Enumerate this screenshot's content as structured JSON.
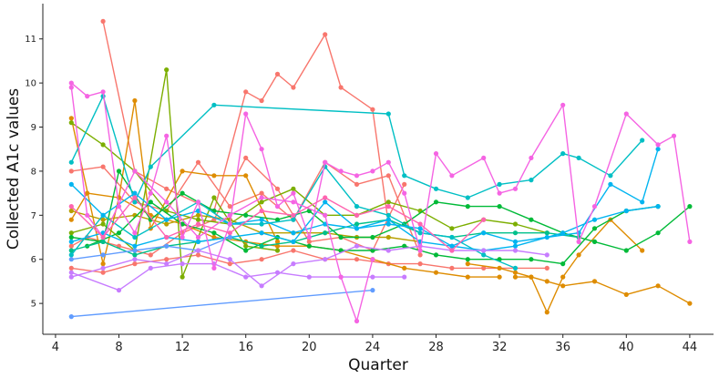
{
  "chart_data": {
    "type": "line",
    "title": "",
    "xlabel": "Quarter",
    "ylabel": "Collected A1c values",
    "xlim": [
      3.2,
      45.5
    ],
    "ylim": [
      4.3,
      11.8
    ],
    "x_ticks": [
      4,
      8,
      12,
      16,
      20,
      24,
      28,
      32,
      36,
      40,
      44
    ],
    "y_ticks": [
      5,
      6,
      7,
      8,
      9,
      10,
      11
    ],
    "grid": false,
    "legend": "none",
    "series": [
      {
        "color": "#F8766D",
        "x": [
          7,
          9,
          11,
          14,
          16,
          17,
          18,
          19,
          21,
          22,
          24,
          25
        ],
        "y": [
          11.4,
          8.0,
          7.6,
          7.1,
          9.8,
          9.6,
          10.2,
          9.9,
          11.1,
          9.9,
          9.4,
          6.8
        ]
      },
      {
        "color": "#F8766D",
        "x": [
          5,
          7,
          9,
          11,
          13,
          15,
          17,
          19,
          21,
          23,
          25,
          27
        ],
        "y": [
          8.0,
          8.1,
          7.3,
          7.1,
          8.2,
          7.2,
          7.5,
          6.9,
          8.2,
          7.7,
          7.9,
          6.1
        ]
      },
      {
        "color": "#F8766D",
        "x": [
          5,
          6,
          8,
          10,
          12,
          14,
          16,
          18,
          20,
          22,
          24,
          26
        ],
        "y": [
          6.3,
          6.5,
          6.3,
          6.1,
          6.6,
          6.9,
          8.3,
          7.6,
          6.4,
          6.5,
          6.2,
          7.7
        ]
      },
      {
        "color": "#F8766D",
        "x": [
          5,
          7,
          9,
          11,
          13,
          15,
          17,
          19,
          21,
          23,
          25,
          27,
          29,
          31,
          35
        ],
        "y": [
          5.8,
          5.7,
          5.9,
          6.0,
          6.1,
          5.9,
          6.0,
          6.2,
          6.0,
          6.0,
          5.9,
          5.9,
          5.8,
          5.8,
          5.8
        ]
      },
      {
        "color": "#DE8C00",
        "x": [
          5,
          7,
          8,
          9,
          10,
          12,
          14,
          16,
          18
        ],
        "y": [
          9.2,
          5.9,
          7.4,
          9.6,
          6.7,
          8.0,
          7.9,
          7.9,
          6.4
        ]
      },
      {
        "color": "#DE8C00",
        "x": [
          5,
          6,
          8,
          10,
          12,
          14,
          16,
          18,
          20,
          22,
          24,
          26,
          28,
          30,
          32
        ],
        "y": [
          6.9,
          7.5,
          7.4,
          7.0,
          6.8,
          6.5,
          6.4,
          6.3,
          6.3,
          6.2,
          6.0,
          5.8,
          5.7,
          5.6,
          5.6
        ]
      },
      {
        "color": "#DE8C00",
        "x": [
          33,
          34,
          35,
          36,
          38,
          40,
          42,
          44
        ],
        "y": [
          5.6,
          5.6,
          5.5,
          5.4,
          5.5,
          5.2,
          5.4,
          5.0
        ]
      },
      {
        "color": "#DE8C00",
        "x": [
          30,
          32,
          33,
          34,
          35,
          36,
          37,
          39,
          41
        ],
        "y": [
          5.9,
          5.8,
          5.7,
          5.6,
          4.8,
          5.6,
          6.1,
          6.9,
          6.2
        ]
      },
      {
        "color": "#B79F00",
        "x": [
          5,
          7,
          9,
          11,
          13,
          15,
          17,
          19,
          21,
          23,
          25,
          27
        ],
        "y": [
          7.1,
          6.9,
          7.0,
          6.8,
          7.0,
          6.9,
          6.6,
          6.6,
          6.6,
          6.5,
          6.5,
          6.4
        ]
      },
      {
        "color": "#7CAE00",
        "x": [
          5,
          7,
          9,
          11,
          13,
          15,
          17,
          19,
          21,
          23,
          25,
          27,
          29,
          31,
          33,
          35
        ],
        "y": [
          9.1,
          8.6,
          8.0,
          7.1,
          6.9,
          6.8,
          7.3,
          7.6,
          7.0,
          7.0,
          7.3,
          7.1,
          6.7,
          6.9,
          6.8,
          6.6
        ]
      },
      {
        "color": "#7CAE00",
        "x": [
          5,
          7,
          9,
          11,
          12,
          14,
          16,
          18
        ],
        "y": [
          6.6,
          6.8,
          6.2,
          10.3,
          5.6,
          7.4,
          6.3,
          6.2
        ]
      },
      {
        "color": "#00BA38",
        "x": [
          5,
          7,
          8,
          10,
          12,
          14,
          16,
          18,
          20,
          22,
          24,
          26,
          28,
          30,
          32,
          34,
          36,
          38,
          40,
          42,
          44
        ],
        "y": [
          6.5,
          6.4,
          8.0,
          6.9,
          7.5,
          7.1,
          7.0,
          6.9,
          7.1,
          6.5,
          6.5,
          6.8,
          7.3,
          7.2,
          7.2,
          6.9,
          6.6,
          6.4,
          6.2,
          6.6,
          7.2
        ]
      },
      {
        "color": "#00BA38",
        "x": [
          6,
          8,
          10,
          12,
          14,
          16,
          18,
          20,
          22,
          24,
          26,
          28,
          30,
          32,
          34,
          36,
          38,
          40,
          42
        ],
        "y": [
          6.3,
          6.6,
          7.3,
          6.8,
          6.6,
          6.2,
          6.5,
          6.3,
          6.2,
          6.2,
          6.3,
          6.1,
          6.0,
          6.0,
          6.0,
          5.9,
          6.7,
          7.1,
          7.2
        ]
      },
      {
        "color": "#00C08B",
        "x": [
          5,
          7,
          9,
          11,
          13,
          15,
          17,
          19,
          21,
          23,
          25,
          27,
          29,
          31,
          33,
          35,
          37
        ],
        "y": [
          6.2,
          6.4,
          6.1,
          6.3,
          6.4,
          6.5,
          6.3,
          6.4,
          6.6,
          6.8,
          6.9,
          6.6,
          6.5,
          6.6,
          6.6,
          6.6,
          6.5
        ]
      },
      {
        "color": "#00BFC4",
        "x": [
          5,
          7,
          9,
          10,
          14,
          25,
          26,
          28,
          30,
          32,
          34,
          36,
          37,
          39,
          41
        ],
        "y": [
          8.2,
          9.7,
          7.3,
          8.1,
          9.5,
          9.3,
          7.9,
          7.6,
          7.4,
          7.7,
          7.8,
          8.4,
          8.3,
          7.9,
          8.7
        ]
      },
      {
        "color": "#00BFC4",
        "x": [
          5,
          7,
          9,
          11,
          13,
          15,
          17,
          19,
          21,
          23,
          25,
          27,
          29,
          31,
          33
        ],
        "y": [
          6.1,
          7.0,
          6.5,
          6.9,
          7.3,
          6.8,
          6.8,
          6.9,
          8.1,
          7.2,
          7.0,
          6.6,
          6.5,
          6.1,
          5.8
        ]
      },
      {
        "color": "#00B4F0",
        "x": [
          5,
          7,
          9,
          11,
          13,
          15,
          17,
          19,
          21,
          23,
          25,
          27,
          29,
          31,
          33,
          35,
          37,
          39,
          41,
          42
        ],
        "y": [
          7.7,
          7.0,
          7.5,
          6.9,
          7.1,
          6.8,
          6.9,
          6.6,
          6.8,
          6.7,
          6.8,
          6.7,
          6.3,
          6.6,
          6.4,
          6.5,
          6.6,
          7.7,
          7.3,
          8.5
        ]
      },
      {
        "color": "#00B4F0",
        "x": [
          5,
          7,
          9,
          11,
          13,
          15,
          17,
          19,
          21,
          23,
          25,
          27,
          29,
          31,
          33,
          36,
          38,
          40,
          42
        ],
        "y": [
          6.4,
          6.6,
          6.3,
          6.5,
          6.4,
          6.5,
          6.6,
          6.4,
          7.3,
          6.7,
          6.9,
          6.4,
          6.3,
          6.2,
          6.3,
          6.6,
          6.9,
          7.1,
          7.2
        ]
      },
      {
        "color": "#619CFF",
        "x": [
          5,
          7,
          9,
          11,
          13,
          15
        ],
        "y": [
          6.0,
          6.1,
          6.2,
          6.3,
          6.2,
          6.5
        ]
      },
      {
        "color": "#619CFF",
        "x": [
          5,
          24
        ],
        "y": [
          4.7,
          5.3
        ]
      },
      {
        "color": "#C77CFF",
        "x": [
          5,
          7,
          9,
          11,
          13,
          15,
          17,
          19,
          21,
          23,
          25,
          27,
          29,
          31,
          33,
          35
        ],
        "y": [
          5.6,
          5.8,
          6.0,
          5.9,
          6.2,
          6.0,
          5.4,
          5.9,
          6.0,
          6.3,
          6.2,
          6.3,
          6.2,
          6.2,
          6.2,
          6.1
        ]
      },
      {
        "color": "#C77CFF",
        "x": [
          5,
          8,
          10,
          12,
          14,
          16,
          18,
          20,
          22,
          24,
          26
        ],
        "y": [
          5.7,
          5.3,
          5.8,
          5.9,
          5.9,
          5.6,
          5.7,
          5.6,
          5.6,
          5.6,
          5.6
        ]
      },
      {
        "color": "#F564E3",
        "x": [
          5,
          6,
          7,
          8,
          9,
          10,
          11,
          12,
          13,
          14,
          15,
          16,
          17,
          18,
          19,
          20,
          21,
          22,
          23,
          24,
          25,
          26,
          27,
          28,
          29,
          31,
          32,
          33,
          34,
          36,
          37,
          38,
          40,
          42,
          43,
          44
        ],
        "y": [
          10.0,
          9.7,
          9.8,
          7.2,
          6.6,
          7.5,
          8.8,
          6.5,
          7.3,
          5.8,
          6.8,
          9.3,
          8.5,
          7.2,
          7.5,
          6.5,
          8.2,
          8.0,
          7.9,
          8.0,
          8.2,
          7.5,
          6.2,
          8.4,
          7.9,
          8.3,
          7.5,
          7.6,
          8.3,
          9.5,
          6.4,
          7.2,
          9.3,
          8.6,
          8.8,
          6.4
        ]
      },
      {
        "color": "#F564E3",
        "x": [
          5,
          6,
          7,
          9,
          11,
          13,
          15,
          17,
          19,
          21,
          22,
          23,
          24
        ],
        "y": [
          9.9,
          7.0,
          6.5,
          8.0,
          7.3,
          6.5,
          7.0,
          7.4,
          7.3,
          7.0,
          5.6,
          4.6,
          6.0
        ]
      },
      {
        "color": "#FF64B0",
        "x": [
          5,
          7,
          9,
          11,
          13,
          15,
          17,
          19,
          21,
          23,
          25,
          27,
          29,
          31
        ],
        "y": [
          7.2,
          6.5,
          7.4,
          6.5,
          6.8,
          6.6,
          7.1,
          7.0,
          7.4,
          7.0,
          7.2,
          6.8,
          6.2,
          6.9
        ]
      }
    ]
  }
}
